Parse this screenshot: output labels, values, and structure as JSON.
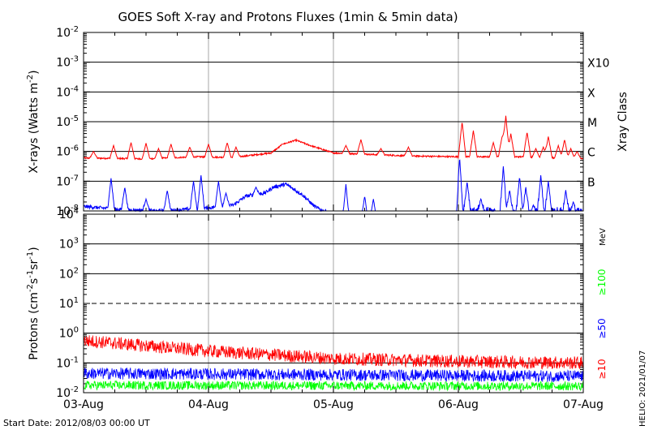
{
  "title": "GOES Soft X-ray and Protons Fluxes   (1min & 5min data)",
  "start_date_label": "Start Date: 2012/08/03 00:00 UT",
  "watermark": "HELIO: 2021/01/07",
  "colors": {
    "red": "#ff0000",
    "blue": "#0000ff",
    "green": "#00ff00",
    "grid": "#000000",
    "day_line": "#bbbbbb"
  },
  "chart_data": [
    {
      "type": "line",
      "panel": "xray",
      "ylabel_text": "X-rays (Watts m",
      "ylabel_sup": "-2",
      "ylabel_close": ")",
      "y_scale": "log",
      "ylim_exp": [
        -8,
        -2
      ],
      "y_ticks": [
        {
          "base": "10",
          "exp": "-2"
        },
        {
          "base": "10",
          "exp": "-3"
        },
        {
          "base": "10",
          "exp": "-4"
        },
        {
          "base": "10",
          "exp": "-5"
        },
        {
          "base": "10",
          "exp": "-6"
        },
        {
          "base": "10",
          "exp": "-7"
        },
        {
          "base": "10",
          "exp": "-8"
        }
      ],
      "right_axis_title": "Xray Class",
      "class_labels": [
        {
          "label": "X10",
          "exp": -3
        },
        {
          "label": "X",
          "exp": -4
        },
        {
          "label": "M",
          "exp": -5
        },
        {
          "label": "C",
          "exp": -6
        },
        {
          "label": "B",
          "exp": -7
        }
      ],
      "x_days_range": [
        0,
        4
      ],
      "series": [
        {
          "color": "#ff0000",
          "baseline_points": [
            [
              0,
              -6.22
            ],
            [
              0.5,
              -6.25
            ],
            [
              0.9,
              -6.18
            ],
            [
              1.2,
              -6.2
            ],
            [
              1.5,
              -6.05
            ],
            [
              1.6,
              -5.75
            ],
            [
              1.7,
              -5.62
            ],
            [
              1.8,
              -5.78
            ],
            [
              2.0,
              -6.05
            ],
            [
              2.3,
              -6.1
            ],
            [
              2.6,
              -6.15
            ],
            [
              3.0,
              -6.18
            ],
            [
              3.5,
              -6.18
            ],
            [
              4.0,
              -6.25
            ]
          ],
          "spikes": [
            [
              0.08,
              -6.0
            ],
            [
              0.24,
              -5.8
            ],
            [
              0.38,
              -5.7
            ],
            [
              0.5,
              -5.72
            ],
            [
              0.6,
              -5.9
            ],
            [
              0.7,
              -5.75
            ],
            [
              0.85,
              -5.85
            ],
            [
              1.0,
              -5.75
            ],
            [
              1.15,
              -5.7
            ],
            [
              1.22,
              -5.85
            ],
            [
              1.6,
              -5.75
            ],
            [
              2.1,
              -5.8
            ],
            [
              2.22,
              -5.6
            ],
            [
              2.38,
              -5.9
            ],
            [
              2.6,
              -5.85
            ],
            [
              3.03,
              -5.0
            ],
            [
              3.12,
              -5.3
            ],
            [
              3.28,
              -5.7
            ],
            [
              3.35,
              -5.5
            ],
            [
              3.38,
              -4.8
            ],
            [
              3.42,
              -5.4
            ],
            [
              3.55,
              -5.35
            ],
            [
              3.62,
              -5.9
            ],
            [
              3.68,
              -5.85
            ],
            [
              3.72,
              -5.5
            ],
            [
              3.8,
              -5.8
            ],
            [
              3.85,
              -5.6
            ],
            [
              3.9,
              -5.9
            ],
            [
              3.95,
              -6.0
            ]
          ]
        },
        {
          "color": "#0000ff",
          "baseline_points": [
            [
              0,
              -7.85
            ],
            [
              0.3,
              -7.95
            ],
            [
              0.6,
              -8.0
            ],
            [
              1.0,
              -7.9
            ],
            [
              1.2,
              -7.8
            ],
            [
              1.3,
              -7.5
            ],
            [
              1.45,
              -7.4
            ],
            [
              1.52,
              -7.2
            ],
            [
              1.62,
              -7.1
            ],
            [
              1.75,
              -7.45
            ],
            [
              1.85,
              -7.85
            ],
            [
              1.92,
              -8.0
            ]
          ],
          "spikes": [
            [
              0.22,
              -6.9
            ],
            [
              0.33,
              -7.2
            ],
            [
              0.5,
              -7.6
            ],
            [
              0.67,
              -7.3
            ],
            [
              0.88,
              -7.0
            ],
            [
              0.94,
              -6.8
            ],
            [
              1.08,
              -7.0
            ],
            [
              1.14,
              -7.4
            ],
            [
              1.22,
              -7.8
            ],
            [
              1.38,
              -7.2
            ],
            [
              2.1,
              -7.1
            ],
            [
              2.25,
              -7.5
            ],
            [
              2.32,
              -7.6
            ],
            [
              3.01,
              -6.2
            ],
            [
              3.07,
              -7.0
            ],
            [
              3.18,
              -7.6
            ],
            [
              3.36,
              -6.5
            ],
            [
              3.41,
              -7.3
            ],
            [
              3.49,
              -6.85
            ],
            [
              3.54,
              -7.2
            ],
            [
              3.6,
              -7.8
            ],
            [
              3.66,
              -6.8
            ],
            [
              3.72,
              -7.0
            ],
            [
              3.86,
              -7.3
            ],
            [
              3.92,
              -7.7
            ]
          ]
        }
      ]
    },
    {
      "type": "line",
      "panel": "protons",
      "ylabel_text": "Protons (cm",
      "ylabel_sup1": "-2",
      "ylabel_mid1": "s",
      "ylabel_sup2": "-1",
      "ylabel_mid2": "sr",
      "ylabel_sup3": "-1",
      "ylabel_close": ")",
      "y_scale": "log",
      "ylim_exp": [
        -2,
        4
      ],
      "y_ticks": [
        {
          "base": "10",
          "exp": "4"
        },
        {
          "base": "10",
          "exp": "3"
        },
        {
          "base": "10",
          "exp": "2"
        },
        {
          "base": "10",
          "exp": "1"
        },
        {
          "base": "10",
          "exp": "0"
        },
        {
          "base": "10",
          "exp": "-1"
        },
        {
          "base": "10",
          "exp": "-2"
        }
      ],
      "threshold_exp": 1,
      "energy_unit": "MeV",
      "x_days_range": [
        0,
        4
      ],
      "series": [
        {
          "name": "≥10",
          "color": "#ff0000",
          "trend_exp": [
            [
              0,
              -0.25
            ],
            [
              1,
              -0.6
            ],
            [
              2,
              -0.85
            ],
            [
              3,
              -0.95
            ],
            [
              4,
              -1.0
            ]
          ],
          "noise": 0.22
        },
        {
          "name": "≥50",
          "color": "#0000ff",
          "trend_exp": [
            [
              0,
              -1.35
            ],
            [
              4,
              -1.45
            ]
          ],
          "noise": 0.2
        },
        {
          "name": "≥100",
          "color": "#00ff00",
          "trend_exp": [
            [
              0,
              -1.75
            ],
            [
              4,
              -1.78
            ]
          ],
          "noise": 0.15
        }
      ]
    }
  ],
  "x_axis": {
    "tick_labels": [
      "03-Aug",
      "04-Aug",
      "05-Aug",
      "06-Aug",
      "07-Aug"
    ]
  }
}
